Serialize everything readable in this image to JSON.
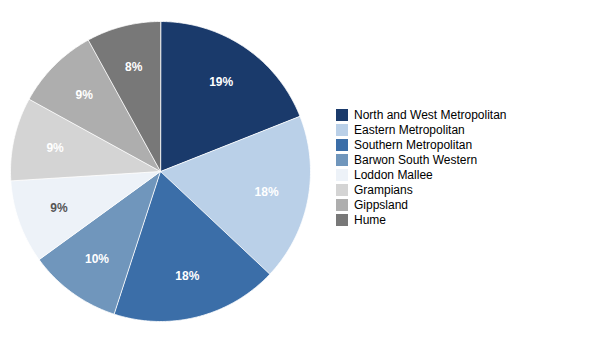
{
  "chart_data": {
    "type": "pie",
    "categories": [
      "North and West Metropolitan",
      "Eastern Metropolitan",
      "Southern Metropolitan",
      "Barwon South Western",
      "Loddon Mallee",
      "Grampians",
      "Gippsland",
      "Hume"
    ],
    "values": [
      19,
      18,
      18,
      10,
      9,
      9,
      9,
      8
    ],
    "value_labels": [
      "19%",
      "18%",
      "18%",
      "10%",
      "9%",
      "9%",
      "9%",
      "8%"
    ],
    "colors": [
      "#1a3a6b",
      "#bad0e8",
      "#3b6ea8",
      "#7096bc",
      "#edf2f8",
      "#d4d4d4",
      "#aeaeae",
      "#787878"
    ],
    "data_labels": true,
    "legend": "right"
  }
}
